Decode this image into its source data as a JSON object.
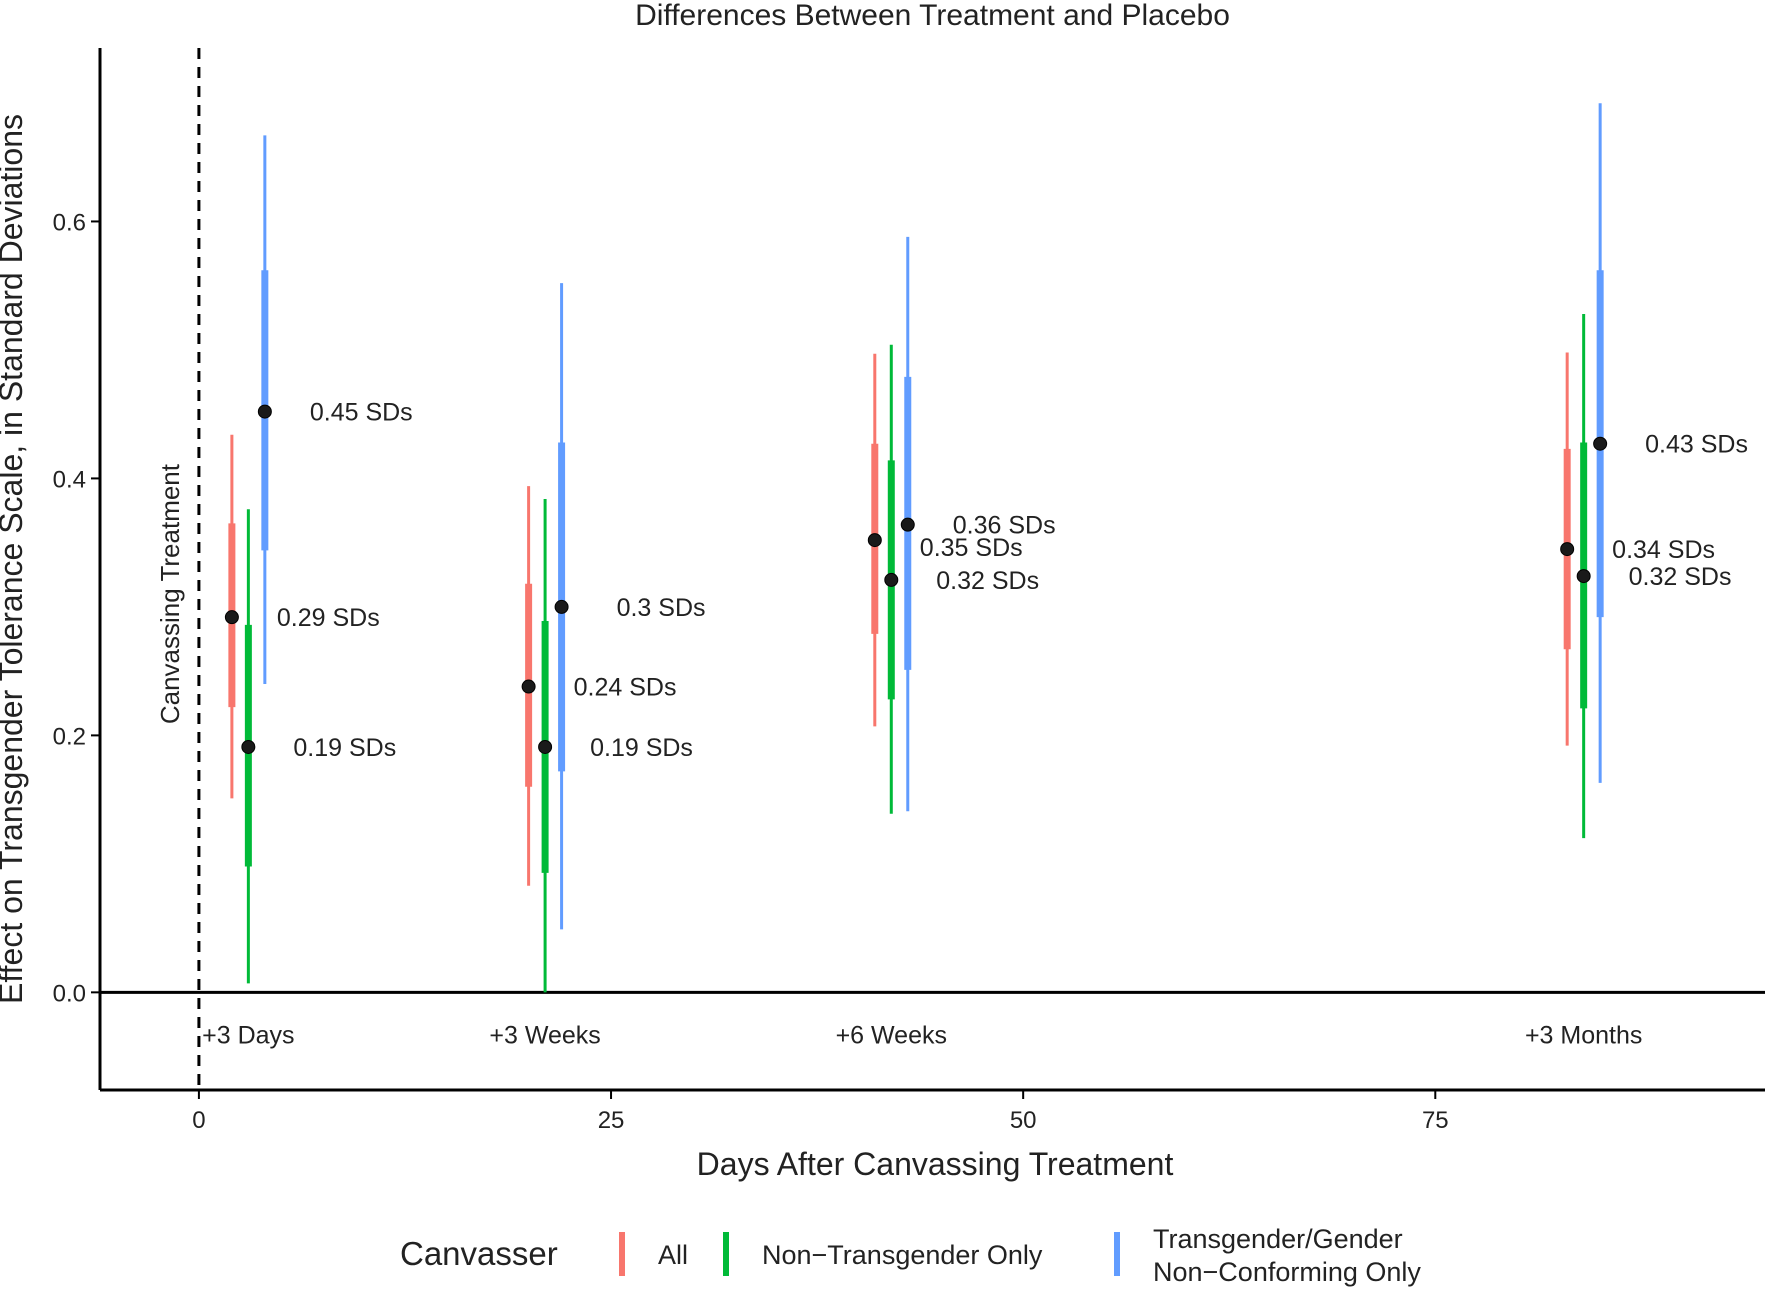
{
  "chart_data": {
    "type": "scatter",
    "title": "Differences Between Treatment and Placebo",
    "xlabel": "Days After Canvassing Treatment",
    "ylabel": "Effect on Transgender Tolerance Scale, in Standard Deviations",
    "xlim": [
      -6,
      95
    ],
    "ylim": [
      -0.076,
      0.735
    ],
    "x_ticks": [
      0,
      25,
      50,
      75
    ],
    "y_ticks": [
      0.0,
      0.2,
      0.4,
      0.6
    ],
    "x_tick_labels": [
      "0",
      "25",
      "50",
      "75"
    ],
    "y_tick_labels": [
      "0.0",
      "0.2",
      "0.4",
      "0.6"
    ],
    "grid": false,
    "reference_lines": {
      "vertical_dashed_x": 0,
      "vertical_label": "Canvassing Treatment",
      "horizontal_y": 0
    },
    "time_labels": [
      {
        "x": 3,
        "text": "+3 Days"
      },
      {
        "x": 21,
        "text": "+3 Weeks"
      },
      {
        "x": 42,
        "text": "+6 Weeks"
      },
      {
        "x": 84,
        "text": "+3 Months"
      }
    ],
    "legend": {
      "title": "Canvasser",
      "position": "bottom"
    },
    "series": [
      {
        "name": "All",
        "color": "#F8766D",
        "points": [
          {
            "x": 2,
            "y": 0.292,
            "inner": [
              0.222,
              0.365
            ],
            "outer": [
              0.151,
              0.434
            ],
            "label": ""
          },
          {
            "x": 20,
            "y": 0.238,
            "inner": [
              0.16,
              0.318
            ],
            "outer": [
              0.083,
              0.394
            ],
            "label": "0.24 SDs"
          },
          {
            "x": 41,
            "y": 0.352,
            "inner": [
              0.279,
              0.427
            ],
            "outer": [
              0.207,
              0.497
            ],
            "label": "0.35 SDs"
          },
          {
            "x": 83,
            "y": 0.345,
            "inner": [
              0.267,
              0.423
            ],
            "outer": [
              0.192,
              0.498
            ],
            "label": "0.34 SDs"
          }
        ]
      },
      {
        "name": "Non−Transgender Only",
        "color": "#00BA38",
        "points": [
          {
            "x": 3,
            "y": 0.191,
            "inner": [
              0.098,
              0.286
            ],
            "outer": [
              0.007,
              0.376
            ],
            "label": "0.19 SDs"
          },
          {
            "x": 21,
            "y": 0.191,
            "inner": [
              0.093,
              0.289
            ],
            "outer": [
              0.0,
              0.384
            ],
            "label": "0.19 SDs"
          },
          {
            "x": 42,
            "y": 0.321,
            "inner": [
              0.228,
              0.414
            ],
            "outer": [
              0.139,
              0.504
            ],
            "label": "0.32 SDs"
          },
          {
            "x": 84,
            "y": 0.324,
            "inner": [
              0.221,
              0.428
            ],
            "outer": [
              0.12,
              0.528
            ],
            "label": "0.32 SDs"
          }
        ]
      },
      {
        "name": "Transgender/Gender Non−Conforming Only",
        "color": "#619CFF",
        "points": [
          {
            "x": 4,
            "y": 0.452,
            "inner": [
              0.344,
              0.562
            ],
            "outer": [
              0.24,
              0.667
            ],
            "label": "0.45 SDs"
          },
          {
            "x": 22,
            "y": 0.3,
            "inner": [
              0.172,
              0.428
            ],
            "outer": [
              0.049,
              0.552
            ],
            "label": "0.3 SDs"
          },
          {
            "x": 43,
            "y": 0.364,
            "inner": [
              0.251,
              0.479
            ],
            "outer": [
              0.141,
              0.588
            ],
            "label": "0.36 SDs"
          },
          {
            "x": 85,
            "y": 0.427,
            "inner": [
              0.292,
              0.562
            ],
            "outer": [
              0.163,
              0.692
            ],
            "label": "0.43 SDs"
          }
        ]
      }
    ],
    "extra_annotations": [
      {
        "x": 2,
        "y": 0.292,
        "text": "0.29 SDs"
      }
    ]
  }
}
